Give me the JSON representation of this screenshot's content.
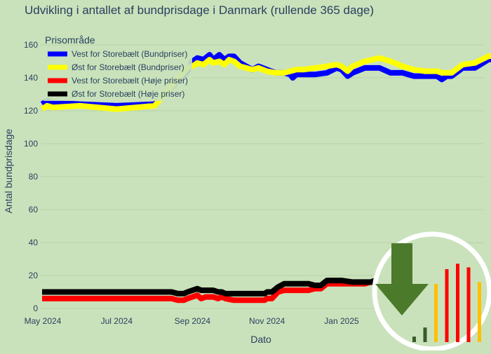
{
  "chart_data": {
    "type": "line",
    "title": "Udvikling i antallet af bundprisdage i Danmark (rullende 365 dage)",
    "xlabel": "Dato",
    "ylabel": "Antal bundprisdage",
    "x_ticks": [
      "May 2024",
      "Jul 2024",
      "Sep 2024",
      "Nov 2024",
      "Jan 2025"
    ],
    "ylim": [
      0,
      165
    ],
    "y_ticks": [
      0,
      20,
      40,
      60,
      80,
      100,
      120,
      140,
      160
    ],
    "legend": {
      "title": "Prisområde",
      "position": "top-left"
    },
    "series": [
      {
        "name": "Vest for Storebælt (Bundpriser)",
        "color": "#0000ff",
        "points": [
          [
            "2024-05-01",
            124
          ],
          [
            "2024-05-05",
            126
          ],
          [
            "2024-05-10",
            125
          ],
          [
            "2024-06-01",
            124
          ],
          [
            "2024-07-01",
            123
          ],
          [
            "2024-08-01",
            124
          ],
          [
            "2024-08-28",
            144
          ],
          [
            "2024-09-01",
            150
          ],
          [
            "2024-09-05",
            152
          ],
          [
            "2024-09-10",
            151
          ],
          [
            "2024-09-15",
            154
          ],
          [
            "2024-09-18",
            151
          ],
          [
            "2024-09-23",
            154
          ],
          [
            "2024-09-27",
            151
          ],
          [
            "2024-10-01",
            153
          ],
          [
            "2024-10-05",
            153
          ],
          [
            "2024-10-10",
            149
          ],
          [
            "2024-10-15",
            147
          ],
          [
            "2024-10-20",
            145
          ],
          [
            "2024-10-25",
            147
          ],
          [
            "2024-11-01",
            145
          ],
          [
            "2024-11-08",
            143
          ],
          [
            "2024-11-15",
            143
          ],
          [
            "2024-11-20",
            142
          ],
          [
            "2024-11-22",
            140
          ],
          [
            "2024-11-25",
            142
          ],
          [
            "2024-12-01",
            142
          ],
          [
            "2024-12-10",
            142
          ],
          [
            "2024-12-20",
            143
          ],
          [
            "2024-12-28",
            146
          ],
          [
            "2025-01-01",
            145
          ],
          [
            "2025-01-06",
            141
          ],
          [
            "2025-01-10",
            143
          ],
          [
            "2025-01-20",
            146
          ],
          [
            "2025-02-01",
            146
          ],
          [
            "2025-02-10",
            143
          ],
          [
            "2025-02-20",
            143
          ],
          [
            "2025-03-01",
            141
          ],
          [
            "2025-03-10",
            141
          ],
          [
            "2025-03-20",
            141
          ],
          [
            "2025-03-24",
            139
          ],
          [
            "2025-03-28",
            141
          ],
          [
            "2025-04-01",
            141
          ],
          [
            "2025-04-10",
            146
          ],
          [
            "2025-04-20",
            146
          ],
          [
            "2025-05-01",
            151
          ],
          [
            "2025-05-10",
            152
          ],
          [
            "2025-05-20",
            155
          ],
          [
            "2025-06-01",
            155
          ],
          [
            "2025-06-05",
            154
          ],
          [
            "2025-06-10",
            154
          ],
          [
            "2025-06-15",
            155
          ]
        ]
      },
      {
        "name": "Øst for Storebælt (Bundpriser)",
        "color": "#ffff00",
        "points": [
          [
            "2024-05-01",
            121
          ],
          [
            "2024-05-05",
            123
          ],
          [
            "2024-05-10",
            122
          ],
          [
            "2024-06-01",
            123
          ],
          [
            "2024-07-01",
            121
          ],
          [
            "2024-08-01",
            123
          ],
          [
            "2024-08-28",
            146
          ],
          [
            "2024-09-01",
            147
          ],
          [
            "2024-09-05",
            149
          ],
          [
            "2024-09-10",
            148
          ],
          [
            "2024-09-15",
            151
          ],
          [
            "2024-09-18",
            149
          ],
          [
            "2024-09-23",
            150
          ],
          [
            "2024-09-27",
            148
          ],
          [
            "2024-10-01",
            151
          ],
          [
            "2024-10-05",
            150
          ],
          [
            "2024-10-10",
            147
          ],
          [
            "2024-10-15",
            146
          ],
          [
            "2024-10-20",
            145
          ],
          [
            "2024-10-25",
            146
          ],
          [
            "2024-11-01",
            144
          ],
          [
            "2024-11-08",
            143
          ],
          [
            "2024-11-15",
            143
          ],
          [
            "2024-11-20",
            144
          ],
          [
            "2024-11-25",
            145
          ],
          [
            "2024-12-01",
            145
          ],
          [
            "2024-12-10",
            146
          ],
          [
            "2024-12-20",
            147
          ],
          [
            "2024-12-28",
            148
          ],
          [
            "2025-01-01",
            147
          ],
          [
            "2025-01-06",
            144
          ],
          [
            "2025-01-10",
            147
          ],
          [
            "2025-01-20",
            150
          ],
          [
            "2025-02-01",
            152
          ],
          [
            "2025-02-10",
            150
          ],
          [
            "2025-02-20",
            147
          ],
          [
            "2025-03-01",
            145
          ],
          [
            "2025-03-10",
            144
          ],
          [
            "2025-03-20",
            144
          ],
          [
            "2025-03-24",
            143
          ],
          [
            "2025-03-28",
            143
          ],
          [
            "2025-04-01",
            143
          ],
          [
            "2025-04-10",
            148
          ],
          [
            "2025-04-20",
            149
          ],
          [
            "2025-05-01",
            153
          ],
          [
            "2025-05-10",
            154
          ],
          [
            "2025-05-20",
            159
          ],
          [
            "2025-06-01",
            159
          ],
          [
            "2025-06-05",
            158
          ],
          [
            "2025-06-10",
            161
          ],
          [
            "2025-06-15",
            162
          ]
        ]
      },
      {
        "name": "Vest for Storebælt (Høje priser)",
        "color": "#ff0000",
        "points": [
          [
            "2024-05-01",
            6
          ],
          [
            "2024-06-01",
            6
          ],
          [
            "2024-07-01",
            6
          ],
          [
            "2024-08-15",
            6
          ],
          [
            "2024-08-20",
            5
          ],
          [
            "2024-08-25",
            5
          ],
          [
            "2024-08-28",
            6
          ],
          [
            "2024-09-01",
            7
          ],
          [
            "2024-09-05",
            8
          ],
          [
            "2024-09-08",
            6
          ],
          [
            "2024-09-12",
            7
          ],
          [
            "2024-09-18",
            7
          ],
          [
            "2024-09-22",
            6
          ],
          [
            "2024-09-25",
            7
          ],
          [
            "2024-09-28",
            6
          ],
          [
            "2024-10-05",
            5
          ],
          [
            "2024-10-20",
            5
          ],
          [
            "2024-10-30",
            5
          ],
          [
            "2024-11-01",
            6
          ],
          [
            "2024-11-05",
            6
          ],
          [
            "2024-11-10",
            10
          ],
          [
            "2024-11-15",
            11
          ],
          [
            "2024-11-25",
            11
          ],
          [
            "2024-12-05",
            11
          ],
          [
            "2024-12-10",
            12
          ],
          [
            "2024-12-15",
            12
          ],
          [
            "2024-12-20",
            15
          ],
          [
            "2025-01-01",
            15
          ],
          [
            "2025-01-10",
            15
          ],
          [
            "2025-01-20",
            15
          ],
          [
            "2025-01-25",
            16
          ],
          [
            "2025-02-01",
            16
          ]
        ]
      },
      {
        "name": "Øst for Storebælt (Høje priser)",
        "color": "#000000",
        "points": [
          [
            "2024-05-01",
            10
          ],
          [
            "2024-06-01",
            10
          ],
          [
            "2024-07-01",
            10
          ],
          [
            "2024-08-15",
            10
          ],
          [
            "2024-08-20",
            9
          ],
          [
            "2024-08-25",
            9
          ],
          [
            "2024-08-28",
            10
          ],
          [
            "2024-09-01",
            11
          ],
          [
            "2024-09-05",
            12
          ],
          [
            "2024-09-08",
            11
          ],
          [
            "2024-09-12",
            11
          ],
          [
            "2024-09-18",
            11
          ],
          [
            "2024-09-22",
            10
          ],
          [
            "2024-09-25",
            10
          ],
          [
            "2024-09-28",
            9
          ],
          [
            "2024-10-05",
            9
          ],
          [
            "2024-10-20",
            9
          ],
          [
            "2024-10-30",
            9
          ],
          [
            "2024-11-01",
            10
          ],
          [
            "2024-11-05",
            10
          ],
          [
            "2024-11-10",
            13
          ],
          [
            "2024-11-15",
            15
          ],
          [
            "2024-11-25",
            15
          ],
          [
            "2024-12-05",
            15
          ],
          [
            "2024-12-10",
            14
          ],
          [
            "2024-12-15",
            14
          ],
          [
            "2024-12-20",
            17
          ],
          [
            "2025-01-01",
            17
          ],
          [
            "2025-01-10",
            16
          ],
          [
            "2025-01-20",
            16
          ],
          [
            "2025-01-25",
            16
          ],
          [
            "2025-02-01",
            18
          ]
        ]
      }
    ]
  },
  "overlay": {
    "ring_color": "#ffffff",
    "arrow_color": "#4b7a2b",
    "bars": [
      {
        "value": 3,
        "color": "#3a5a2a"
      },
      {
        "value": 8,
        "color": "#3a5a2a"
      },
      {
        "value": 32,
        "color": "#ffc000"
      },
      {
        "value": 40,
        "color": "#ff0000"
      },
      {
        "value": 43,
        "color": "#ff0000"
      },
      {
        "value": 41,
        "color": "#ff0000"
      },
      {
        "value": 33,
        "color": "#ffc000"
      }
    ]
  }
}
